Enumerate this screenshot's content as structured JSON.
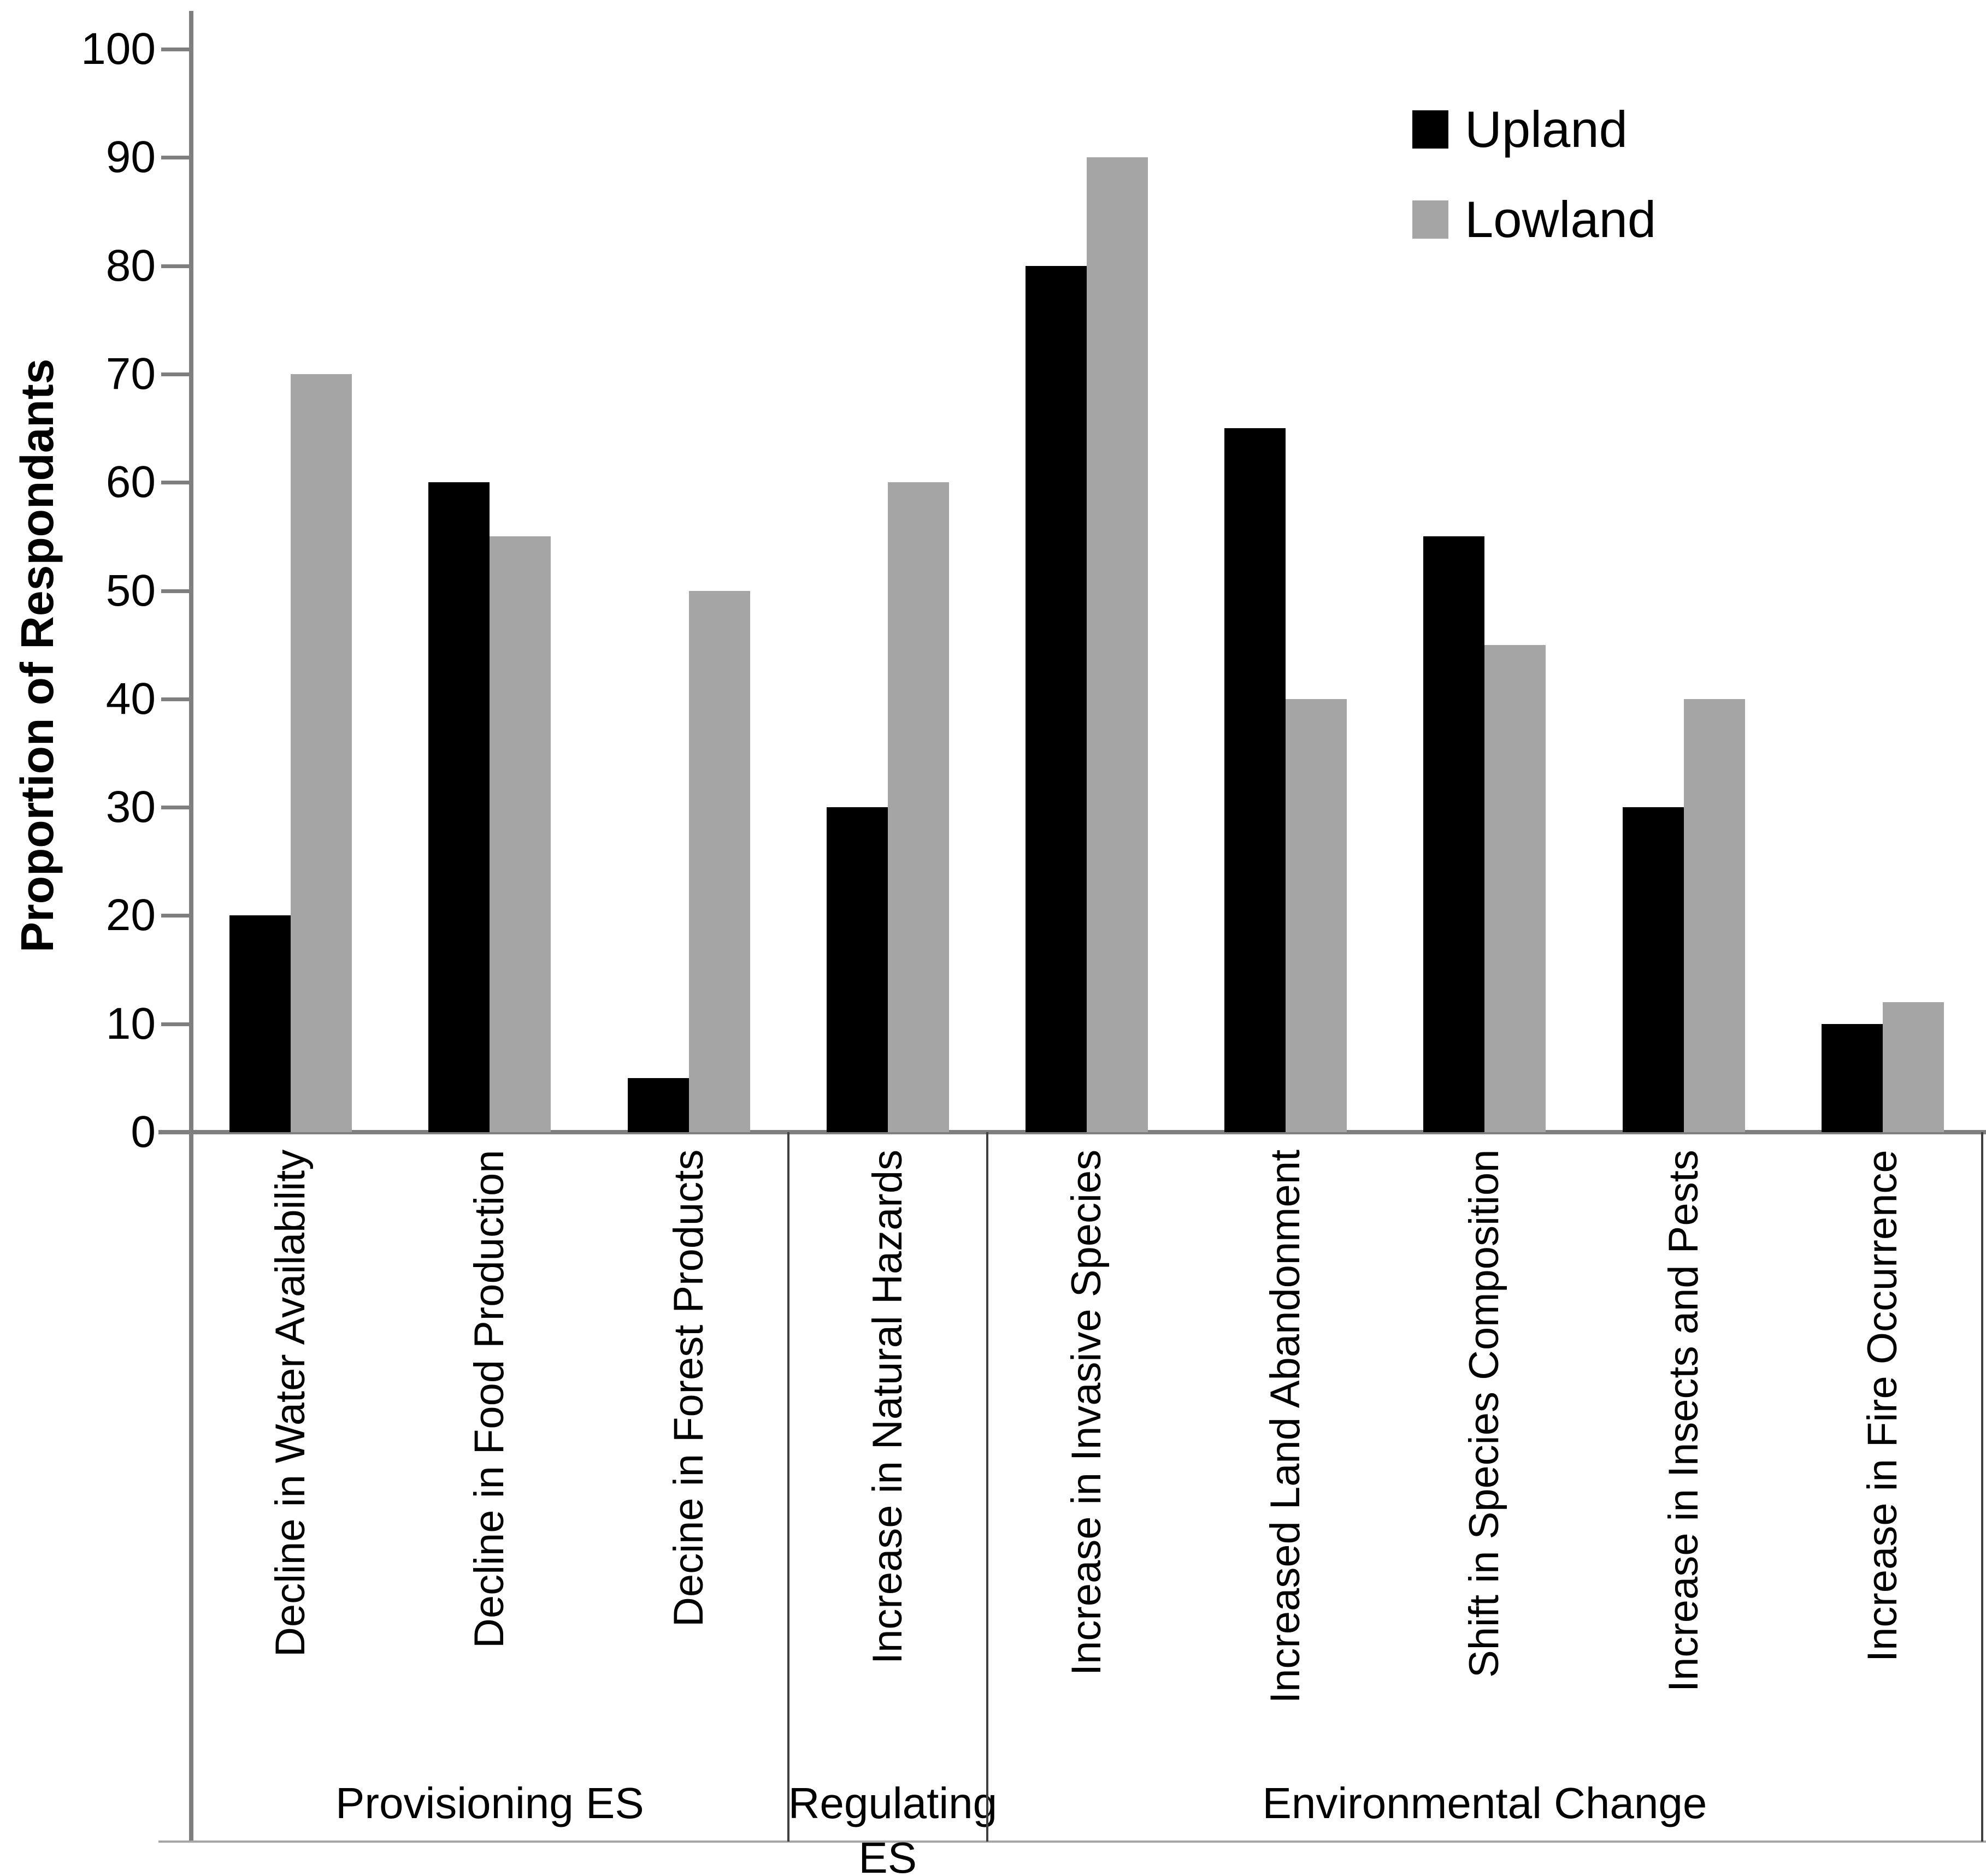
{
  "chart_data": {
    "type": "bar",
    "title": "",
    "xlabel": "",
    "ylabel": "Proportion of Respondants",
    "ylim": [
      0,
      100
    ],
    "yticks": [
      0,
      10,
      20,
      30,
      40,
      50,
      60,
      70,
      80,
      90,
      100
    ],
    "grid": false,
    "legend_position": "top-right",
    "categories": [
      "Decline in Water Availability",
      "Decline in Food Production",
      "Decine in Forest Products",
      "Increase in Natural Hazards",
      "Increase in Invasive Species",
      "Increased Land Abandonment",
      "Shift in Species Composition",
      "Increase in Insects and Pests",
      "Increase in Fire Occurrence"
    ],
    "series": [
      {
        "name": "Upland",
        "color": "#000000",
        "values": [
          20,
          60,
          5,
          30,
          80,
          65,
          55,
          30,
          10
        ]
      },
      {
        "name": "Lowland",
        "color": "#a5a5a5",
        "values": [
          70,
          55,
          50,
          60,
          90,
          40,
          45,
          40,
          12
        ]
      }
    ],
    "groups": [
      {
        "label": "Provisioning ES",
        "span": [
          0,
          2
        ]
      },
      {
        "label": "Regulating ES",
        "span": [
          3,
          3
        ]
      },
      {
        "label": "Environmental Change",
        "span": [
          4,
          8
        ]
      }
    ]
  },
  "colors": {
    "axis": "#7f7f7f",
    "divider": "#404040",
    "bottom_rule": "#a6a6a6",
    "text": "#000000"
  }
}
